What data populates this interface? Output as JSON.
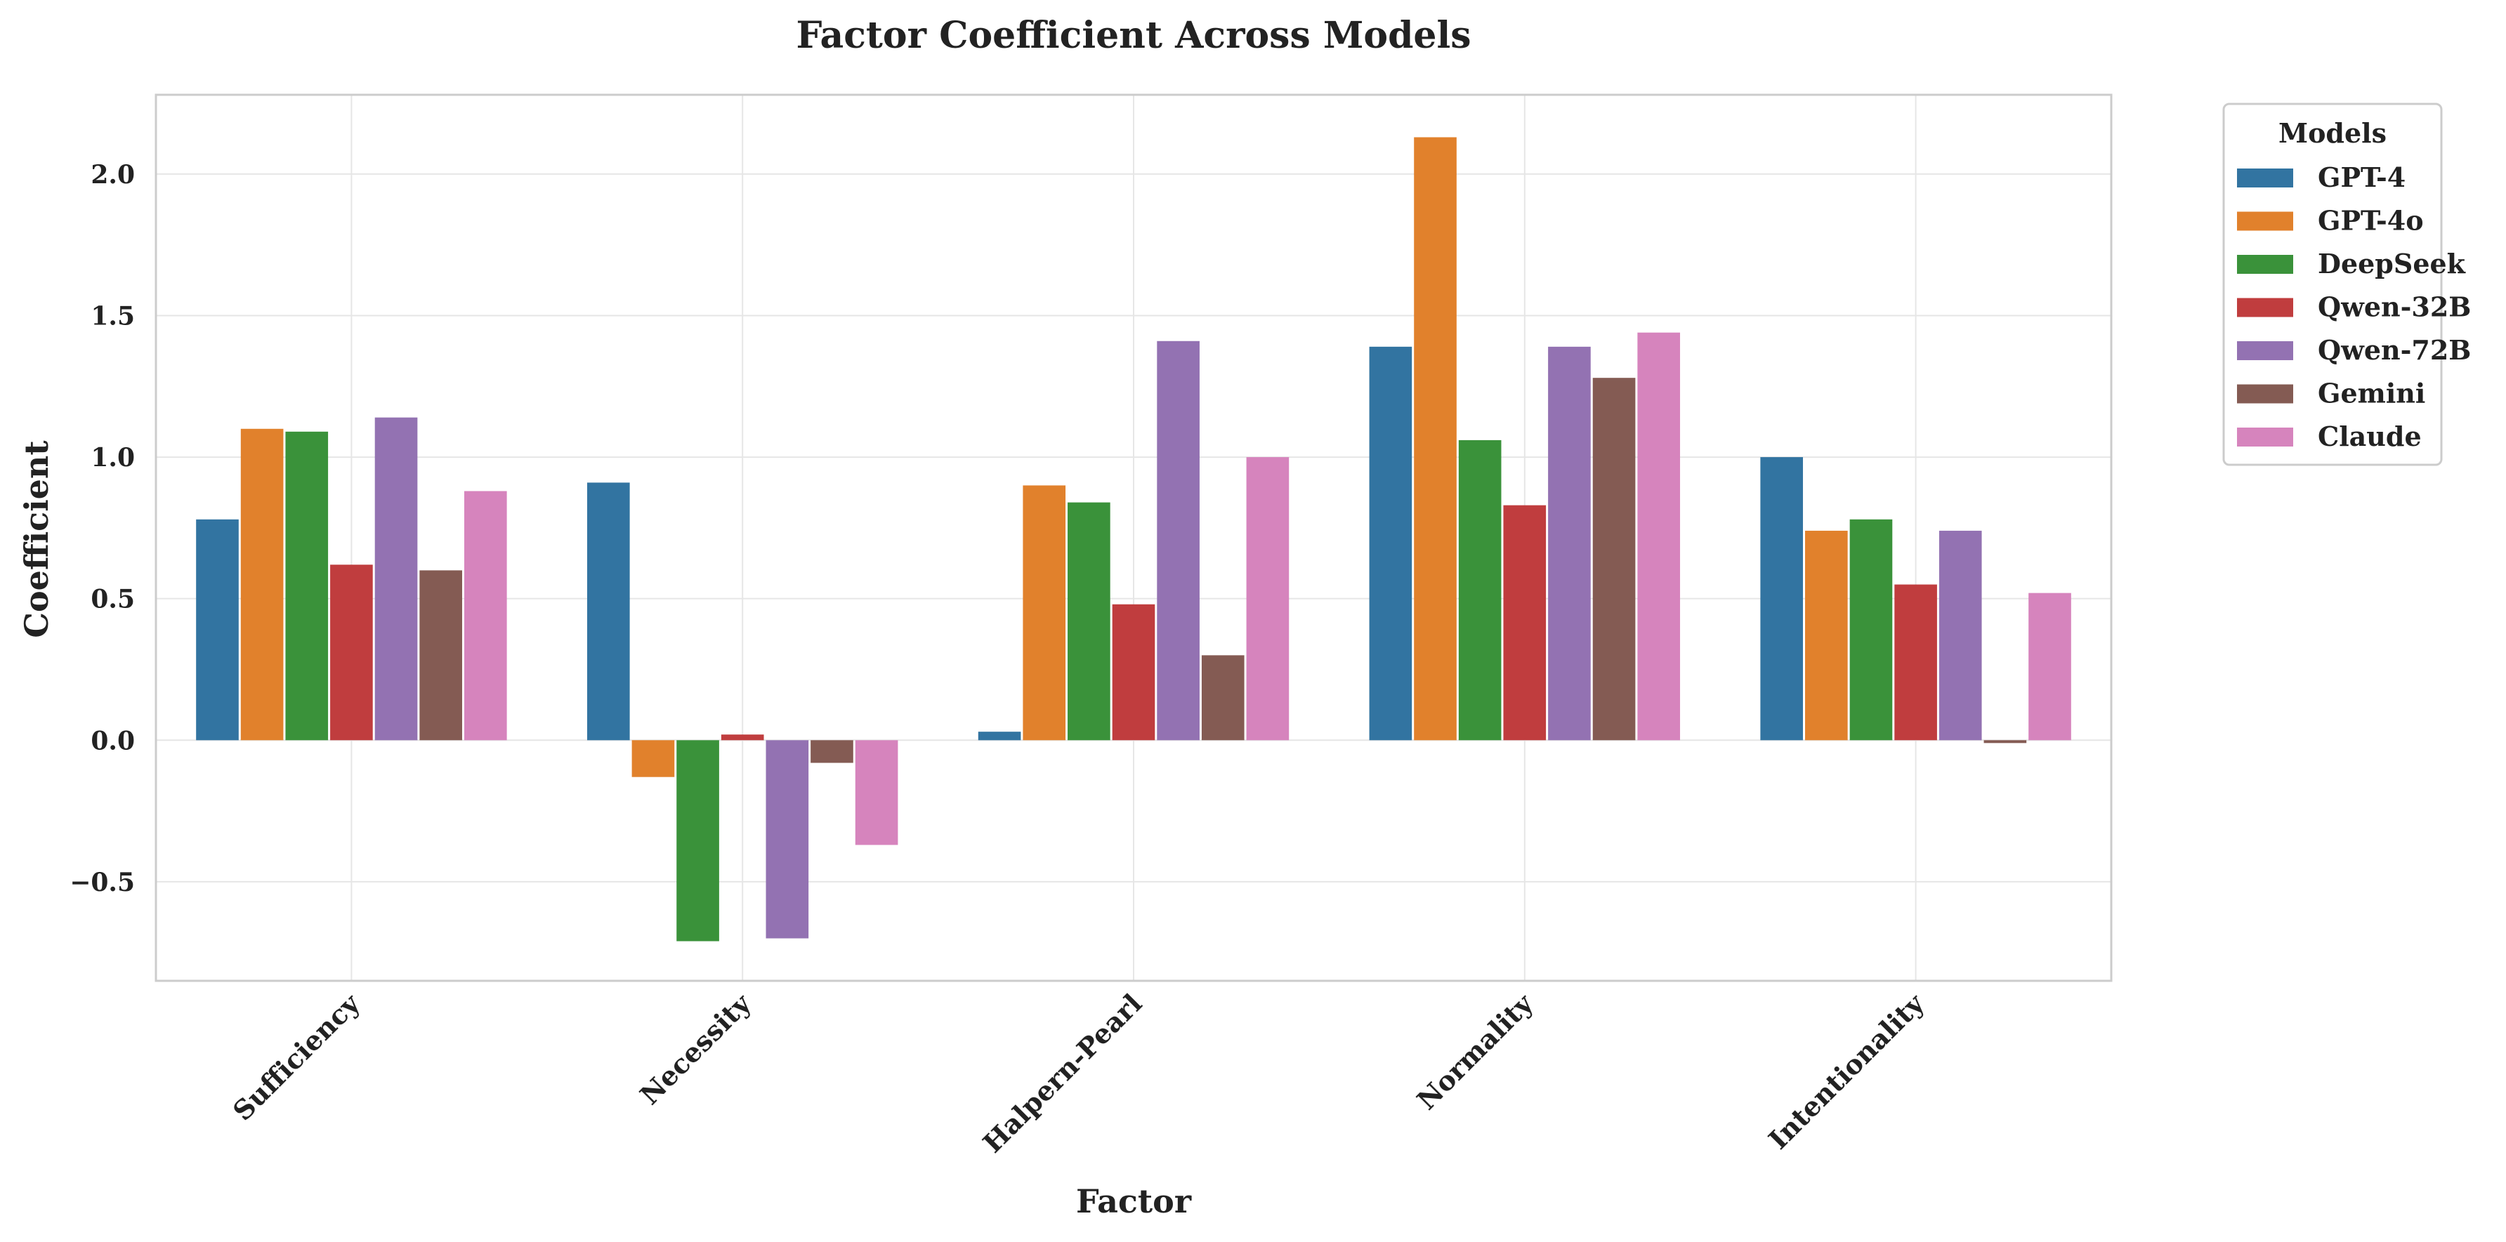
{
  "chart_data": {
    "type": "bar",
    "title": "Factor Coefficient Across Models",
    "xlabel": "Factor",
    "ylabel": "Coefficient",
    "categories": [
      "Sufficiency",
      "Necessity",
      "Halpern-Pearl",
      "Normality",
      "Intentionality"
    ],
    "ylim": [
      -0.85,
      2.28
    ],
    "yticks": [
      -0.5,
      0.0,
      0.5,
      1.0,
      1.5,
      2.0
    ],
    "ytick_labels": [
      "−0.5",
      "0.0",
      "0.5",
      "1.0",
      "1.5",
      "2.0"
    ],
    "grid": true,
    "legend": {
      "title": "Models",
      "placement": "outside-top-right"
    },
    "series": [
      {
        "name": "GPT-4",
        "color": "#3274a1",
        "values": [
          0.78,
          0.91,
          0.03,
          1.39,
          1.0
        ]
      },
      {
        "name": "GPT-4o",
        "color": "#e1812c",
        "values": [
          1.1,
          -0.13,
          0.9,
          2.13,
          0.74
        ]
      },
      {
        "name": "DeepSeek",
        "color": "#3a923a",
        "values": [
          1.09,
          -0.71,
          0.84,
          1.06,
          0.78
        ]
      },
      {
        "name": "Qwen-32B",
        "color": "#c03d3e",
        "values": [
          0.62,
          0.02,
          0.48,
          0.83,
          0.55
        ]
      },
      {
        "name": "Qwen-72B",
        "color": "#9372b2",
        "values": [
          1.14,
          -0.7,
          1.41,
          1.39,
          0.74
        ]
      },
      {
        "name": "Gemini",
        "color": "#845b53",
        "values": [
          0.6,
          -0.08,
          0.3,
          1.28,
          -0.01
        ]
      },
      {
        "name": "Claude",
        "color": "#d684bd",
        "values": [
          0.88,
          -0.37,
          1.0,
          1.44,
          0.52
        ]
      }
    ]
  }
}
